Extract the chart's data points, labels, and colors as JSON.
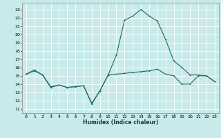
{
  "title": "",
  "xlabel": "Humidex (Indice chaleur)",
  "bg_color": "#c8eaea",
  "grid_color": "#ffffff",
  "line_color": "#1a6b6b",
  "xlim": [
    -0.5,
    23.5
  ],
  "ylim": [
    10.5,
    23.8
  ],
  "yticks": [
    11,
    12,
    13,
    14,
    15,
    16,
    17,
    18,
    19,
    20,
    21,
    22,
    23
  ],
  "xticks": [
    0,
    1,
    2,
    3,
    4,
    5,
    6,
    7,
    8,
    9,
    10,
    11,
    12,
    13,
    14,
    15,
    16,
    17,
    18,
    19,
    20,
    21,
    22,
    23
  ],
  "series1_x": [
    0,
    1,
    2,
    3,
    4,
    5,
    6,
    7,
    8,
    9,
    10,
    11,
    12,
    13,
    14,
    15,
    16,
    17,
    18,
    19,
    20,
    21,
    22,
    23
  ],
  "series1_y": [
    15.2,
    15.7,
    15.1,
    13.7,
    13.9,
    13.6,
    13.7,
    13.8,
    11.6,
    13.2,
    15.1,
    15.2,
    15.3,
    15.4,
    15.5,
    15.6,
    15.8,
    15.2,
    15.0,
    14.0,
    14.0,
    15.0,
    15.0,
    14.3
  ],
  "series2_x": [
    0,
    1,
    2,
    3,
    4,
    5,
    6,
    7,
    8,
    9,
    10,
    11,
    12,
    13,
    14,
    15,
    16,
    17,
    18,
    19,
    20,
    21,
    22,
    23
  ],
  "series2_y": [
    15.2,
    15.6,
    15.1,
    13.6,
    13.9,
    13.6,
    13.7,
    13.8,
    11.7,
    13.2,
    15.1,
    17.5,
    21.7,
    22.2,
    23.0,
    22.2,
    21.6,
    19.4,
    16.8,
    16.0,
    15.1,
    15.1,
    15.0,
    14.3
  ],
  "marker_size": 2.0,
  "line_width": 0.8,
  "tick_fontsize": 4.5,
  "label_fontsize": 5.5
}
